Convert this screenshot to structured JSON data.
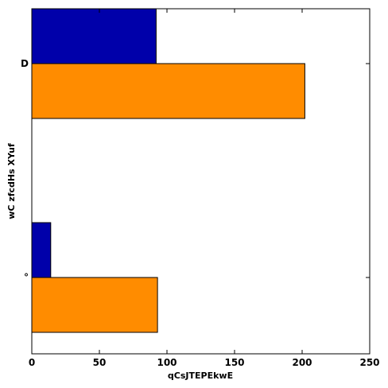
{
  "chart_data": {
    "type": "bar",
    "orientation": "horizontal",
    "categories": [
      "D",
      "°"
    ],
    "series": [
      {
        "color": "#0000aa",
        "values": [
          92,
          14
        ]
      },
      {
        "color": "#ff8c00",
        "values": [
          202,
          93
        ]
      }
    ],
    "xlabel": "qCsJTEPEkwE",
    "ylabel": "wC zfcdHs XYuf",
    "xlim": [
      0,
      250
    ],
    "xticks": [
      0,
      50,
      100,
      150,
      200,
      250
    ],
    "grid": false,
    "legend": "none"
  }
}
